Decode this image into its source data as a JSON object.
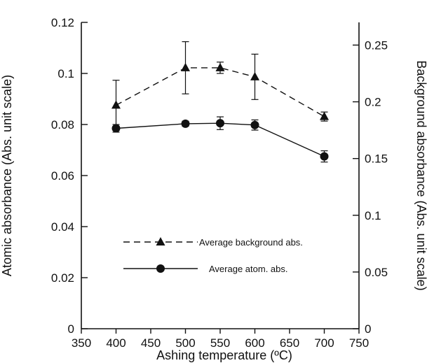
{
  "chart_data": {
    "type": "line",
    "title": "",
    "xlabel": "Ashing temperature (ºC)",
    "ylabel_left": "Atomic absorbance (Abs. unit scale)",
    "ylabel_right": "Background absorbance (Abs. unit scale)",
    "xlim": [
      350,
      750
    ],
    "ylim_left": [
      0,
      0.12
    ],
    "ylim_right": [
      0,
      0.27
    ],
    "grid": false,
    "legend_position": "lower-middle",
    "x_ticks": [
      "350",
      "400",
      "450",
      "500",
      "550",
      "600",
      "650",
      "700",
      "750"
    ],
    "y_left_ticks": [
      "0",
      "0.02",
      "0.04",
      "0.06",
      "0.08",
      "0.1",
      "0.12"
    ],
    "y_right_ticks": [
      "0",
      "0.05",
      "0.1",
      "0.15",
      "0.2",
      "0.25"
    ],
    "series": [
      {
        "name": "Average background abs.",
        "axis": "right",
        "marker": "triangle",
        "line_style": "dashed",
        "x": [
          400,
          500,
          550,
          600,
          700
        ],
        "y": [
          0.197,
          0.23,
          0.23,
          0.222,
          0.187
        ],
        "error": [
          0.022,
          0.023,
          0.005,
          0.02,
          0.004
        ]
      },
      {
        "name": "Average atom. abs.",
        "axis": "left",
        "marker": "circle",
        "line_style": "solid",
        "x": [
          400,
          500,
          550,
          600,
          700
        ],
        "y": [
          0.0785,
          0.0803,
          0.0805,
          0.0798,
          0.0675
        ],
        "error": [
          0.0015,
          0.001,
          0.0025,
          0.002,
          0.0022
        ]
      }
    ]
  }
}
